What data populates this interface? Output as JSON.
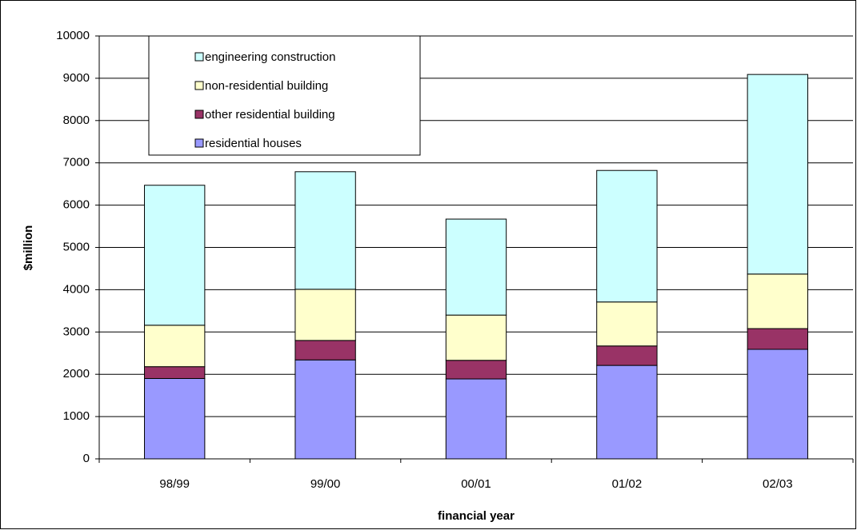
{
  "chart_data": {
    "type": "stacked_bar",
    "x_label": "financial year",
    "y_label": "$million",
    "categories": [
      "98/99",
      "99/00",
      "00/01",
      "01/02",
      "02/03"
    ],
    "series": [
      {
        "name": "residential houses",
        "color": "#9999ff",
        "values": [
          1900,
          2340,
          1890,
          2210,
          2590
        ]
      },
      {
        "name": "other residential building",
        "color": "#993366",
        "values": [
          280,
          460,
          440,
          460,
          490
        ]
      },
      {
        "name": "non-residential building",
        "color": "#ffffcc",
        "values": [
          980,
          1210,
          1070,
          1040,
          1290
        ]
      },
      {
        "name": "engineering construction",
        "color": "#ccffff",
        "values": [
          3310,
          2780,
          2270,
          3110,
          4720
        ]
      }
    ],
    "ylim": [
      0,
      10000
    ],
    "yticks": [
      0,
      1000,
      2000,
      3000,
      4000,
      5000,
      6000,
      7000,
      8000,
      9000,
      10000
    ],
    "grid": true,
    "legend": "top-left"
  }
}
